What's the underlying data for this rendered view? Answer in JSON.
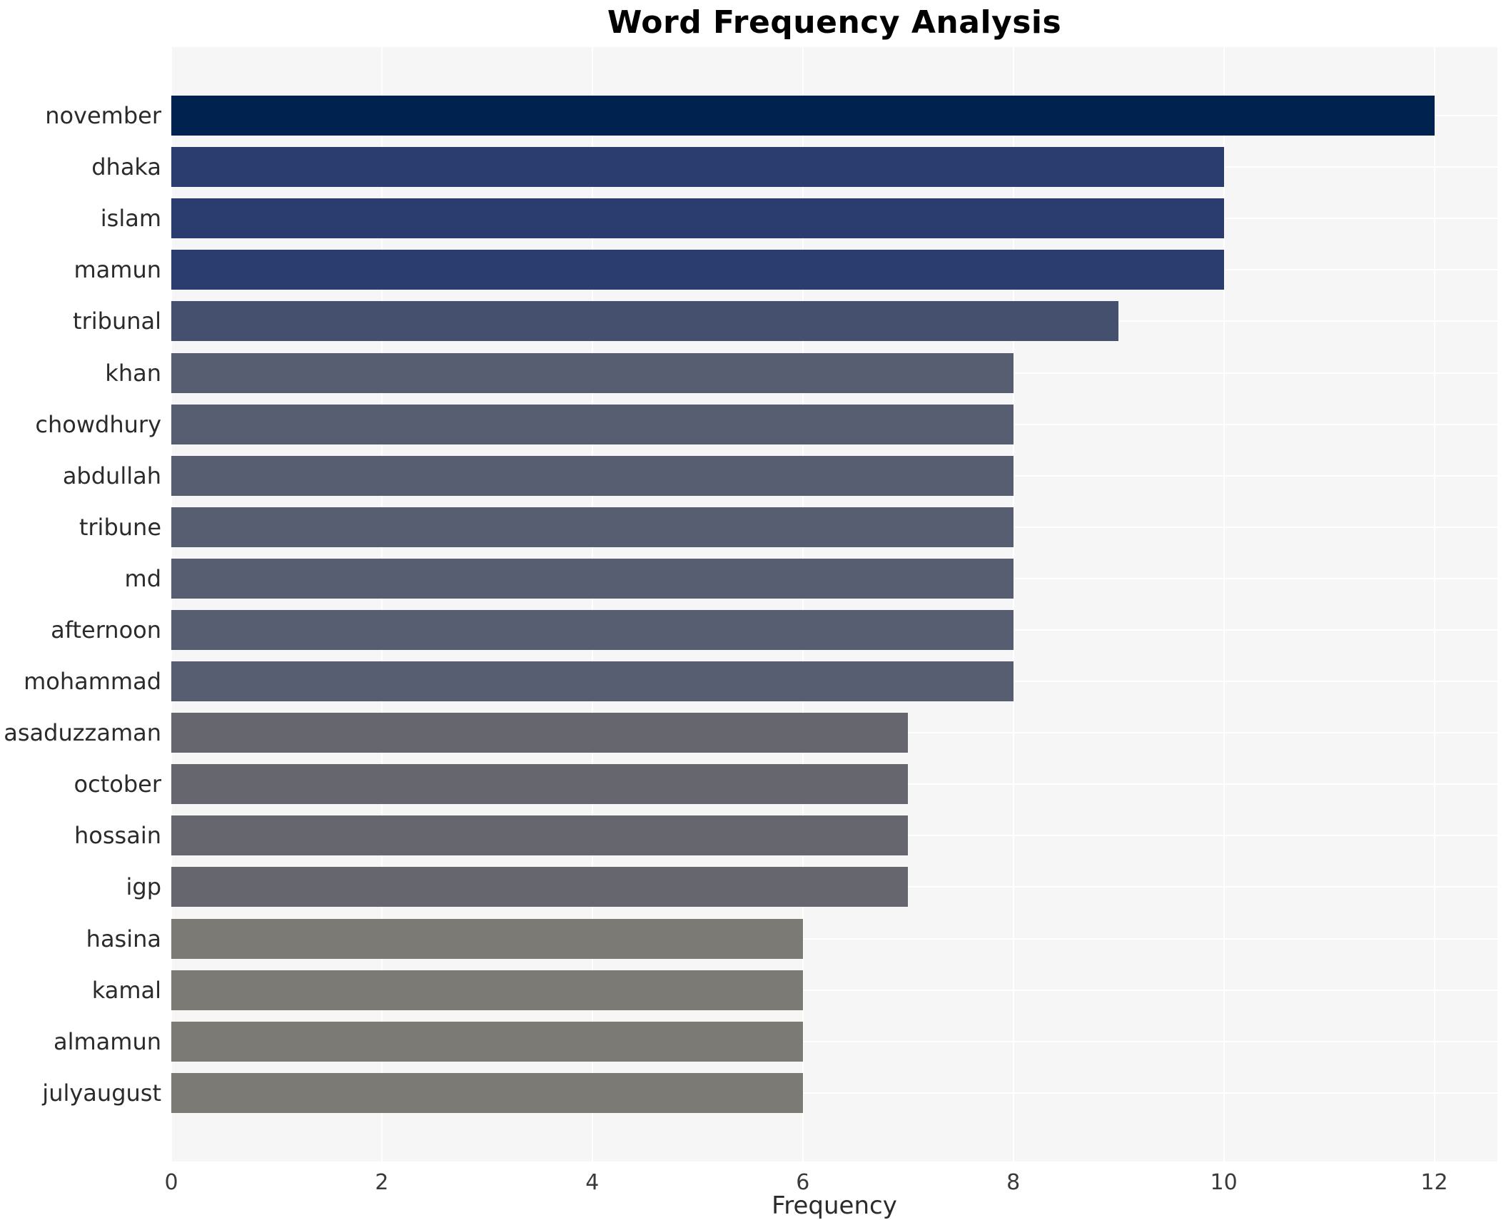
{
  "chart_data": {
    "type": "bar",
    "orientation": "horizontal",
    "title": "Word Frequency Analysis",
    "xlabel": "Frequency",
    "ylabel": "",
    "categories": [
      "november",
      "dhaka",
      "islam",
      "mamun",
      "tribunal",
      "khan",
      "chowdhury",
      "abdullah",
      "tribune",
      "md",
      "afternoon",
      "mohammad",
      "asaduzzaman",
      "october",
      "hossain",
      "igp",
      "hasina",
      "kamal",
      "almamun",
      "julyaugust"
    ],
    "values": [
      12,
      10,
      10,
      10,
      9,
      8,
      8,
      8,
      8,
      8,
      8,
      8,
      7,
      7,
      7,
      7,
      6,
      6,
      6,
      6
    ],
    "bar_colors": [
      "#00224e",
      "#2b3d6e",
      "#2b3d6e",
      "#2b3d6e",
      "#454f6e",
      "#575e72",
      "#575e72",
      "#575e72",
      "#575e72",
      "#575e72",
      "#575e72",
      "#575e72",
      "#66676e",
      "#66676e",
      "#66676e",
      "#66676e",
      "#7b7a75",
      "#7b7a75",
      "#7b7a75",
      "#7b7a75"
    ],
    "xlim": [
      0,
      12.6
    ],
    "xticks": [
      0,
      2,
      4,
      6,
      8,
      10,
      12
    ],
    "legend": null,
    "grid": true,
    "layout": {
      "plot_background": "#f6f6f7",
      "figure_background": "#ffffff",
      "grid_color": "#ffffff",
      "title_color": "#000000",
      "tick_text_color": "#3a3a3a",
      "label_text_color": "#2b2b2b",
      "bar_color_meaning": "darker navy = higher frequency (cividis-style gradient)"
    }
  }
}
